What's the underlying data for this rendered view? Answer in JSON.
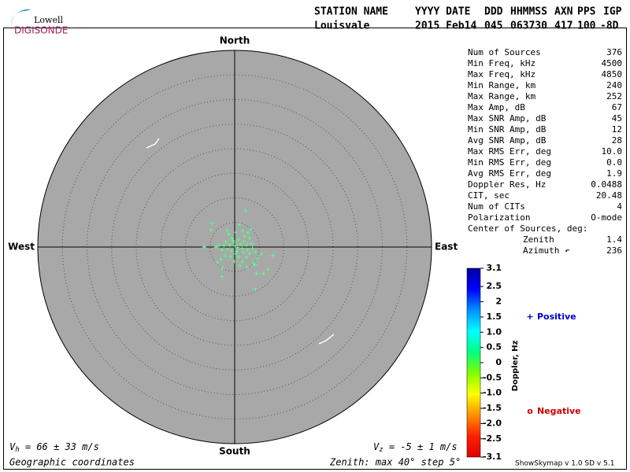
{
  "logo": {
    "top": "Lowell",
    "bottom": "DIGISONDE"
  },
  "header": {
    "labels": [
      "STATION NAME",
      "YYYY DATE",
      "DDD",
      "HHMMSS",
      "AXN",
      "PPS",
      "IGP"
    ],
    "values": [
      "Louisvale",
      "2015 Feb14",
      "045",
      "063730",
      "417",
      "100",
      "-8D"
    ]
  },
  "stats": {
    "rows": [
      [
        "Num of Sources",
        "376"
      ],
      [
        "Min Freq, kHz",
        "4500"
      ],
      [
        "Max Freq, kHz",
        "4850"
      ],
      [
        "Min Range, km",
        "240"
      ],
      [
        "Max Range, km",
        "252"
      ],
      [
        "Max Amp, dB",
        "67"
      ],
      [
        "Max SNR Amp, dB",
        "45"
      ],
      [
        "Min SNR Amp, dB",
        "12"
      ],
      [
        "Avg SNR Amp, dB",
        "28"
      ],
      [
        "Max RMS Err, deg",
        "10.0"
      ],
      [
        "Min RMS Err, deg",
        "0.0"
      ],
      [
        "Avg RMS Err, deg",
        "1.9"
      ],
      [
        "Doppler Res, Hz",
        "0.0488"
      ],
      [
        "CIT, sec",
        "20.48"
      ],
      [
        "Num of CITs",
        "4"
      ],
      [
        "Polarization",
        "O-mode"
      ]
    ],
    "center_title": "Center of Sources, deg:",
    "center_rows": [
      [
        "Zenith",
        "1.4"
      ],
      [
        "Azimuth ↶",
        "236"
      ]
    ]
  },
  "footer": {
    "vh_symbol": "V",
    "vh_sub": "h",
    "vh_text": " = 66 ± 33 m/s",
    "vz_symbol": "V",
    "vz_sub": "z",
    "vz_text": " = -5 ± 1 m/s",
    "coords": "Geographic coordinates",
    "zenith": "Zenith: max 40°  step 5°",
    "version": "ShowSkymap v 1.0   SD v 5.1"
  },
  "chart_data": {
    "type": "scatter",
    "directions": {
      "north": "North",
      "south": "South",
      "west": "West",
      "east": "East"
    },
    "rlim": [
      0,
      40
    ],
    "rings": [
      5,
      10,
      15,
      20,
      25,
      30,
      35,
      40
    ],
    "points_color": "#55ff88",
    "series": [
      {
        "name": "Positive",
        "color": "#0000c8",
        "marker": "+",
        "x": [
          2.2,
          -4.6,
          -4.8,
          -1.2,
          0.3,
          1.6,
          2.7,
          3.0,
          -0.5,
          0.8,
          1.9,
          -1.8,
          -0.2,
          1.2,
          2.4,
          3.4,
          -3.2,
          -2.2,
          -1.0,
          0.1,
          0.6,
          1.5,
          2.6,
          3.6,
          -2.6,
          -1.5,
          -0.6,
          0.4,
          1.8,
          3.0,
          4.2,
          5.5,
          7.8,
          -3.8,
          -6.2,
          -1.9,
          -0.8,
          0.9,
          2.4,
          4.6,
          -2.8,
          -0.1,
          1.6,
          3.8,
          6.8,
          5.9,
          -2.6,
          1.1,
          4.4,
          -3.5,
          0.2,
          -0.3,
          2.0,
          -1.5,
          1.0,
          3.3,
          -2.5,
          2.5,
          4.1,
          4.2
        ],
        "y": [
          7.4,
          4.8,
          3.5,
          2.6,
          3.0,
          3.3,
          2.9,
          1.8,
          1.8,
          1.5,
          1.2,
          1.0,
          0.9,
          0.6,
          0.4,
          0.7,
          0.3,
          0.2,
          0.4,
          0.2,
          -0.1,
          -0.3,
          -0.5,
          -0.2,
          -0.6,
          -0.5,
          -0.8,
          -0.9,
          -1.1,
          -1.3,
          -1.1,
          -1.4,
          -1.7,
          0.0,
          0.0,
          -1.8,
          -1.9,
          -2.0,
          -2.1,
          -2.4,
          -2.5,
          -2.9,
          -3.0,
          -3.2,
          -4.6,
          -5.4,
          -6.0,
          -3.8,
          -5.4,
          -3.1,
          -1.4,
          1.3,
          2.2,
          3.4,
          4.6,
          3.6,
          -4.3,
          -4.0,
          -3.6,
          -8.6
        ]
      },
      {
        "name": "Negative",
        "color": "#d00000",
        "marker": "o",
        "x": [],
        "y": []
      }
    ],
    "colorbar": {
      "label": "Doppler, Hz",
      "lim": [
        -3.1,
        3.1
      ],
      "ticks": [
        3.1,
        2.5,
        2,
        1.5,
        {
          "value": 1,
          "label": "1.0"
        },
        0.5,
        0,
        -0.5,
        {
          "value": -1,
          "label": "-1.0"
        },
        -1.5,
        {
          "value": -2,
          "label": "-2.0"
        },
        -2.5,
        -3.1
      ],
      "colors": [
        "#0000a0",
        "#0000ff",
        "#0090ff",
        "#00ffff",
        "#00ff80",
        "#80ff00",
        "#ffff00",
        "#ff9000",
        "#ff2000",
        "#e00000"
      ]
    }
  }
}
